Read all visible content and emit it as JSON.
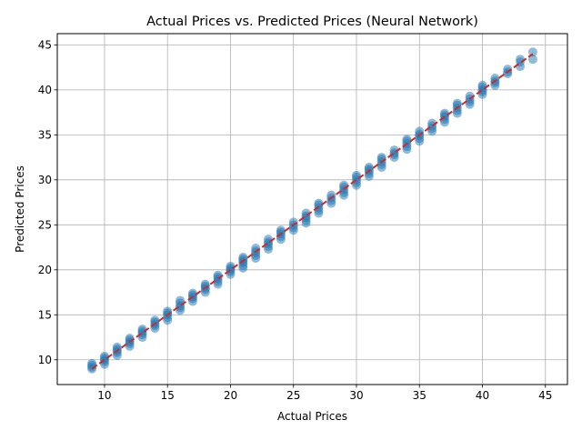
{
  "chart_data": {
    "type": "scatter",
    "title": "Actual Prices vs. Predicted Prices (Neural Network)",
    "xlabel": "Actual Prices",
    "ylabel": "Predicted Prices",
    "xlim": [
      6.25,
      46.75
    ],
    "ylim": [
      7.25,
      46.25
    ],
    "xticks": [
      10,
      15,
      20,
      25,
      30,
      35,
      40,
      45
    ],
    "yticks": [
      10,
      15,
      20,
      25,
      30,
      35,
      40,
      45
    ],
    "grid": true,
    "point_color": "#1f77b4",
    "point_alpha": 0.5,
    "reference_line": {
      "from": [
        9,
        9
      ],
      "to": [
        44,
        44
      ],
      "color": "#d62728",
      "style": "dashed"
    },
    "groups": [
      {
        "x": 9,
        "y": [
          9.0,
          9.2,
          9.4,
          9.6
        ]
      },
      {
        "x": 10,
        "y": [
          9.5,
          9.8,
          10.0,
          10.2,
          10.4
        ]
      },
      {
        "x": 11,
        "y": [
          10.5,
          10.8,
          11.0,
          11.2,
          11.4
        ]
      },
      {
        "x": 12,
        "y": [
          11.5,
          11.8,
          12.0,
          12.2,
          12.4
        ]
      },
      {
        "x": 13,
        "y": [
          12.5,
          12.8,
          13.0,
          13.2,
          13.4
        ]
      },
      {
        "x": 14,
        "y": [
          13.5,
          13.8,
          14.0,
          14.2,
          14.4
        ]
      },
      {
        "x": 15,
        "y": [
          14.4,
          14.7,
          15.0,
          15.2,
          15.4
        ]
      },
      {
        "x": 16,
        "y": [
          15.5,
          15.8,
          16.0,
          16.3,
          16.6
        ]
      },
      {
        "x": 17,
        "y": [
          16.5,
          16.8,
          17.0,
          17.2,
          17.4
        ]
      },
      {
        "x": 18,
        "y": [
          17.5,
          17.8,
          18.0,
          18.2,
          18.4
        ]
      },
      {
        "x": 19,
        "y": [
          18.4,
          18.7,
          19.0,
          19.2,
          19.4
        ]
      },
      {
        "x": 20,
        "y": [
          19.5,
          19.8,
          20.0,
          20.2,
          20.4
        ]
      },
      {
        "x": 21,
        "y": [
          20.2,
          20.5,
          20.8,
          21.0,
          21.2,
          21.4
        ]
      },
      {
        "x": 22,
        "y": [
          21.3,
          21.6,
          21.9,
          22.1,
          22.4
        ]
      },
      {
        "x": 23,
        "y": [
          22.3,
          22.6,
          22.9,
          23.1,
          23.4
        ]
      },
      {
        "x": 24,
        "y": [
          23.4,
          23.7,
          24.0,
          24.2,
          24.4
        ]
      },
      {
        "x": 25,
        "y": [
          24.4,
          24.7,
          25.0,
          25.3
        ]
      },
      {
        "x": 26,
        "y": [
          25.2,
          25.5,
          25.8,
          26.0,
          26.3
        ]
      },
      {
        "x": 27,
        "y": [
          26.3,
          26.6,
          26.9,
          27.2,
          27.4
        ]
      },
      {
        "x": 28,
        "y": [
          27.4,
          27.7,
          28.0,
          28.3
        ]
      },
      {
        "x": 29,
        "y": [
          28.3,
          28.6,
          28.9,
          29.2,
          29.4
        ]
      },
      {
        "x": 30,
        "y": [
          29.4,
          29.7,
          30.0,
          30.3,
          30.5
        ]
      },
      {
        "x": 31,
        "y": [
          30.4,
          30.7,
          31.0,
          31.2,
          31.4
        ]
      },
      {
        "x": 32,
        "y": [
          31.4,
          31.7,
          32.0,
          32.3,
          32.5
        ]
      },
      {
        "x": 33,
        "y": [
          32.5,
          32.8,
          33.0,
          33.3
        ]
      },
      {
        "x": 34,
        "y": [
          33.4,
          33.7,
          34.0,
          34.3,
          34.5
        ]
      },
      {
        "x": 35,
        "y": [
          34.3,
          34.6,
          34.9,
          35.1,
          35.4
        ]
      },
      {
        "x": 36,
        "y": [
          35.4,
          35.7,
          36.0,
          36.3
        ]
      },
      {
        "x": 37,
        "y": [
          36.4,
          36.7,
          37.0,
          37.2,
          37.4
        ]
      },
      {
        "x": 38,
        "y": [
          37.4,
          37.7,
          38.0,
          38.3,
          38.5
        ]
      },
      {
        "x": 39,
        "y": [
          38.4,
          38.7,
          39.0,
          39.3
        ]
      },
      {
        "x": 40,
        "y": [
          39.5,
          39.8,
          40.0,
          40.3,
          40.5
        ]
      },
      {
        "x": 41,
        "y": [
          40.5,
          40.8,
          41.0,
          41.3
        ]
      },
      {
        "x": 42,
        "y": [
          41.8,
          42.0,
          42.3
        ]
      },
      {
        "x": 43,
        "y": [
          42.6,
          43.1,
          43.4
        ]
      },
      {
        "x": 44,
        "y": [
          43.4,
          44.2
        ]
      }
    ]
  }
}
